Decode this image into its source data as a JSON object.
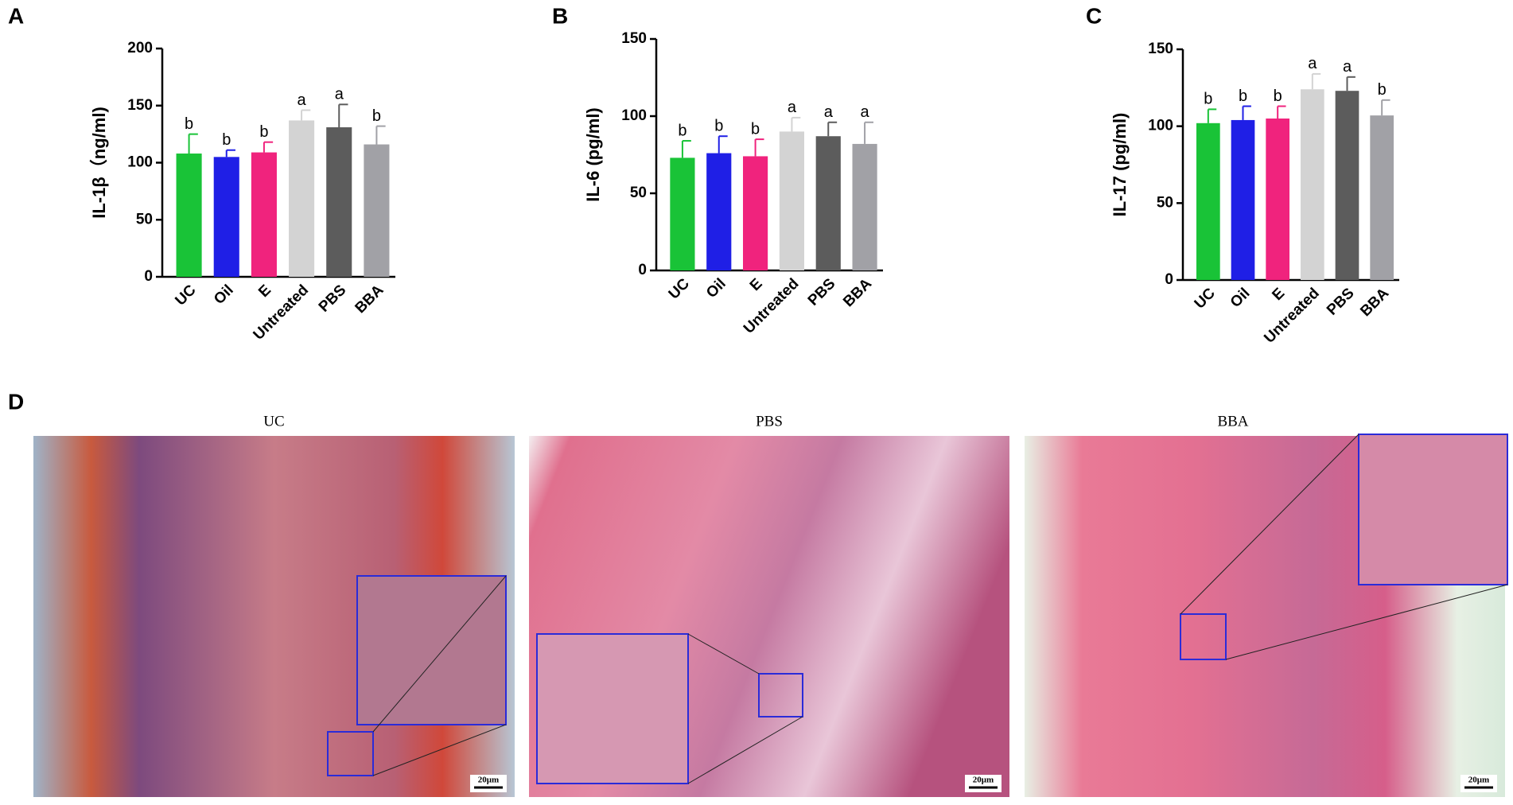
{
  "chart_data": [
    {
      "type": "bar",
      "panel_label": "A",
      "y_label": "IL-1β（ng/ml)",
      "categories": [
        "UC",
        "Oil",
        "E",
        "Untreated",
        "PBS",
        "BBA"
      ],
      "values": [
        108,
        105,
        109,
        137,
        131,
        116
      ],
      "errors": [
        17,
        6,
        9,
        9,
        20,
        16
      ],
      "annotations": [
        "b",
        "b",
        "b",
        "a",
        "a",
        "b"
      ],
      "colors": [
        "#19c337",
        "#1f1fe6",
        "#f0237d",
        "#d3d3d3",
        "#5c5c5c",
        "#a1a1a6"
      ],
      "ylim": [
        0,
        200
      ],
      "yticks": [
        0,
        50,
        100,
        150,
        200
      ]
    },
    {
      "type": "bar",
      "panel_label": "B",
      "y_label": "IL-6 (pg/ml)",
      "categories": [
        "UC",
        "Oil",
        "E",
        "Untreated",
        "PBS",
        "BBA"
      ],
      "values": [
        73,
        76,
        74,
        90,
        87,
        82
      ],
      "errors": [
        11,
        11,
        11,
        9,
        9,
        14
      ],
      "annotations": [
        "b",
        "b",
        "b",
        "a",
        "a",
        "a"
      ],
      "colors": [
        "#19c337",
        "#1f1fe6",
        "#f0237d",
        "#d3d3d3",
        "#5c5c5c",
        "#a1a1a6"
      ],
      "ylim": [
        0,
        150
      ],
      "yticks": [
        0,
        50,
        100,
        150
      ]
    },
    {
      "type": "bar",
      "panel_label": "C",
      "y_label": "IL-17 (pg/ml)",
      "categories": [
        "UC",
        "Oil",
        "E",
        "Untreated",
        "PBS",
        "BBA"
      ],
      "values": [
        102,
        104,
        105,
        124,
        123,
        107
      ],
      "errors": [
        9,
        9,
        8,
        10,
        9,
        10
      ],
      "annotations": [
        "b",
        "b",
        "b",
        "a",
        "a",
        "b"
      ],
      "colors": [
        "#19c337",
        "#1f1fe6",
        "#f0237d",
        "#d3d3d3",
        "#5c5c5c",
        "#a1a1a6"
      ],
      "ylim": [
        0,
        150
      ],
      "yticks": [
        0,
        50,
        100,
        150
      ]
    }
  ],
  "histology": {
    "panel_label": "D",
    "panels": [
      {
        "title": "UC",
        "scale_bar": "20μm"
      },
      {
        "title": "PBS",
        "scale_bar": "20μm"
      },
      {
        "title": "BBA",
        "scale_bar": "20μm"
      }
    ]
  }
}
